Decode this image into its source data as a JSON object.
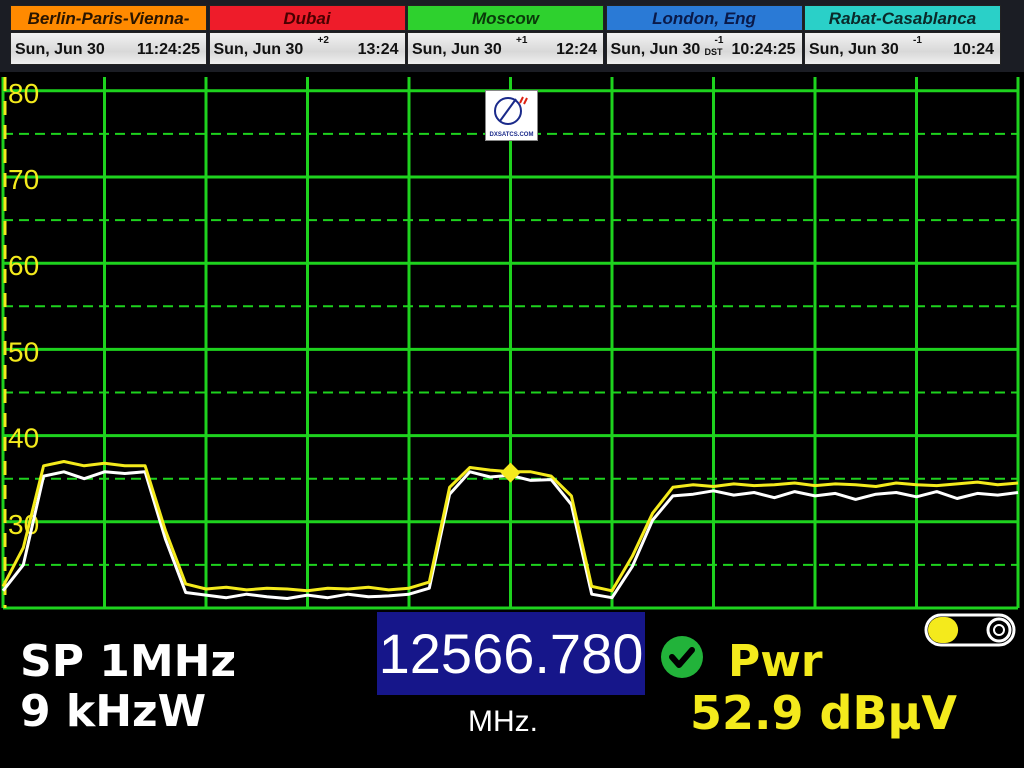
{
  "clocks": [
    {
      "city": "Berlin-Paris-Vienna-Roma",
      "date": "Sun, Jun 30",
      "offset": "",
      "dst": "",
      "time": "11:24:25",
      "color": "#ff8a00",
      "text": "#2a1500"
    },
    {
      "city": "Dubai",
      "date": "Sun, Jun 30",
      "offset": "+2",
      "dst": "",
      "time": "13:24",
      "color": "#ee1c2a",
      "text": "#4a0000"
    },
    {
      "city": "Moscow",
      "date": "Sun, Jun 30",
      "offset": "+1",
      "dst": "",
      "time": "12:24",
      "color": "#2ed12e",
      "text": "#0a3a0a"
    },
    {
      "city": "London, Eng",
      "date": "Sun, Jun 30",
      "offset": "-1",
      "dst": "DST",
      "time": "10:24:25",
      "color": "#2a7ad6",
      "text": "#0a1a4a"
    },
    {
      "city": "Rabat-Casablanca",
      "date": "Sun, Jun 30",
      "offset": "-1",
      "dst": "",
      "time": "10:24",
      "color": "#2ad0c8",
      "text": "#0a2a2a"
    }
  ],
  "logo": {
    "text": "DXSATCS.COM"
  },
  "info": {
    "span": "SP 1MHz",
    "rbw": "9 kHzW",
    "frequency": "12566.780",
    "frequency_unit": "MHz.",
    "lock_status_icon": "check-circle-icon",
    "power_label": "Pwr",
    "power_value": "52.9 dBµV",
    "battery_level": 0.35
  },
  "chart_data": {
    "type": "line",
    "title": "",
    "ylim": [
      20,
      81.6
    ],
    "yticks": [
      30,
      40,
      50,
      60,
      70,
      80
    ],
    "ytick_labels": [
      "30",
      "40",
      "50",
      "60",
      "70",
      "80"
    ],
    "x_divisions": 10,
    "grid": true,
    "marker": {
      "index": 25,
      "value": 35.7
    },
    "colors": {
      "grid": "#1ed21e",
      "live": "#f4ea1c",
      "reference": "#ffffff",
      "axis_labels": "#f4ea1c"
    },
    "series": [
      {
        "values": [
          22.5,
          27,
          36.5,
          37,
          36.5,
          36.8,
          36.5,
          36.5,
          29,
          22.8,
          22.2,
          22.4,
          22.1,
          22.3,
          22.2,
          22.0,
          22.3,
          22.2,
          22.4,
          22.1,
          22.3,
          23,
          34,
          36.3,
          36,
          35.8,
          35.8,
          35.3,
          33,
          22.5,
          22,
          26,
          31,
          34,
          34.3,
          34.1,
          34.4,
          34.2,
          34.3,
          34.5,
          34.2,
          34.4,
          34.3,
          34.1,
          34.5,
          34.3,
          34.2,
          34.4,
          34.6,
          34.3,
          34.5
        ]
      },
      {
        "values": [
          22,
          25,
          35.3,
          35.8,
          35,
          35.8,
          35.6,
          35.8,
          28,
          21.8,
          21.5,
          21.2,
          21.6,
          21.3,
          21.1,
          21.5,
          21.2,
          21.6,
          21.3,
          21.4,
          21.6,
          22.3,
          33.2,
          35.8,
          35.2,
          35.4,
          34.8,
          34.9,
          32,
          21.6,
          21.2,
          24.8,
          30.2,
          33,
          33.2,
          33.6,
          33.1,
          33.4,
          32.8,
          33.5,
          33.0,
          33.3,
          32.6,
          33.2,
          33.4,
          32.9,
          33.5,
          32.7,
          33.3,
          33.1,
          33.4
        ]
      }
    ]
  }
}
